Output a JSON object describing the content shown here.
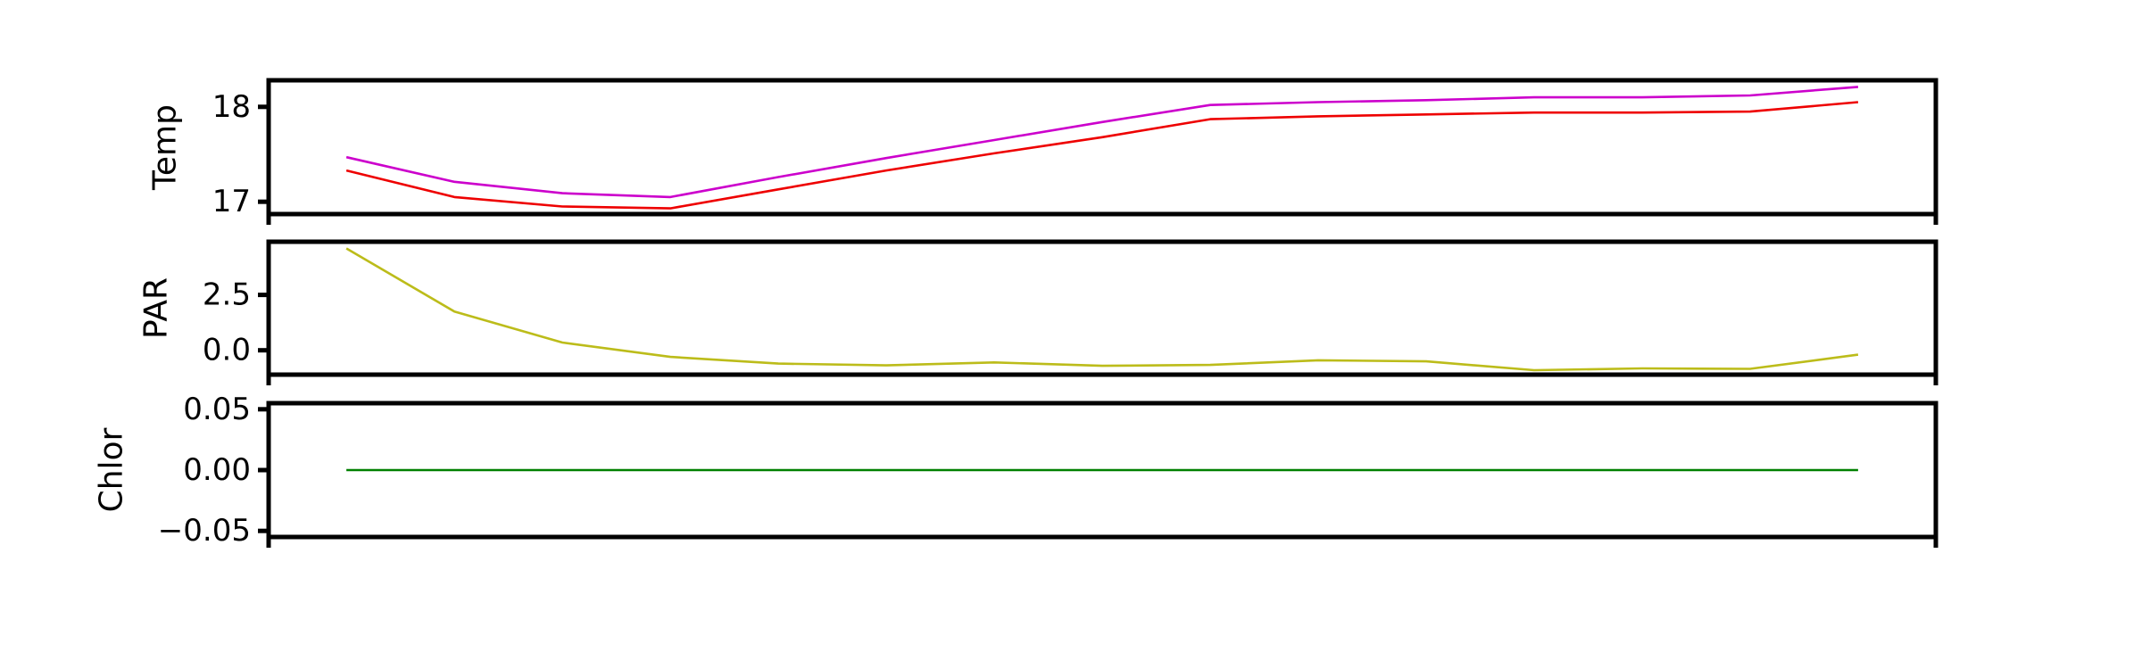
{
  "chart_data": [
    {
      "type": "line",
      "ylabel": "Temp",
      "xlabel": "",
      "x": [
        0,
        1,
        2,
        3,
        4,
        5,
        6,
        7,
        8,
        9,
        10,
        11,
        12,
        13,
        14
      ],
      "xlim": [
        -0.72,
        14.72
      ],
      "ylim": [
        16.87,
        18.28
      ],
      "yticks": [
        17,
        18
      ],
      "ytick_labels": [
        "17",
        "18"
      ],
      "grid": false,
      "series": [
        {
          "color": "#cc00cc",
          "values": [
            17.47,
            17.21,
            17.09,
            17.05,
            17.26,
            17.46,
            17.65,
            17.84,
            18.02,
            18.05,
            18.07,
            18.1,
            18.1,
            18.12,
            18.21
          ]
        },
        {
          "color": "#ee0000",
          "values": [
            17.33,
            17.05,
            16.95,
            16.93,
            17.13,
            17.33,
            17.51,
            17.68,
            17.87,
            17.9,
            17.92,
            17.94,
            17.94,
            17.95,
            18.05
          ]
        }
      ]
    },
    {
      "type": "line",
      "ylabel": "PAR",
      "xlabel": "",
      "x": [
        0,
        1,
        2,
        3,
        4,
        5,
        6,
        7,
        8,
        9,
        10,
        11,
        12,
        13,
        14
      ],
      "xlim": [
        -0.72,
        14.72
      ],
      "ylim": [
        -1.1,
        4.9
      ],
      "yticks": [
        0,
        2.5
      ],
      "ytick_labels": [
        "0.0",
        "2.5"
      ],
      "grid": false,
      "series": [
        {
          "color": "#bcbc1a",
          "values": [
            4.6,
            1.75,
            0.35,
            -0.3,
            -0.6,
            -0.68,
            -0.55,
            -0.7,
            -0.66,
            -0.45,
            -0.5,
            -0.9,
            -0.82,
            -0.84,
            -0.2
          ]
        }
      ]
    },
    {
      "type": "line",
      "ylabel": "Chlor",
      "xlabel": "",
      "x": [
        0,
        1,
        2,
        3,
        4,
        5,
        6,
        7,
        8,
        9,
        10,
        11,
        12,
        13,
        14
      ],
      "xlim": [
        -0.72,
        14.72
      ],
      "ylim": [
        -0.055,
        0.055
      ],
      "yticks": [
        -0.05,
        0,
        0.05
      ],
      "ytick_labels": [
        "−0.05",
        "0.00",
        "0.05"
      ],
      "grid": false,
      "series": [
        {
          "color": "#008000",
          "values": [
            0,
            0,
            0,
            0,
            0,
            0,
            0,
            0,
            0,
            0,
            0,
            0,
            0,
            0,
            0
          ]
        }
      ]
    }
  ]
}
